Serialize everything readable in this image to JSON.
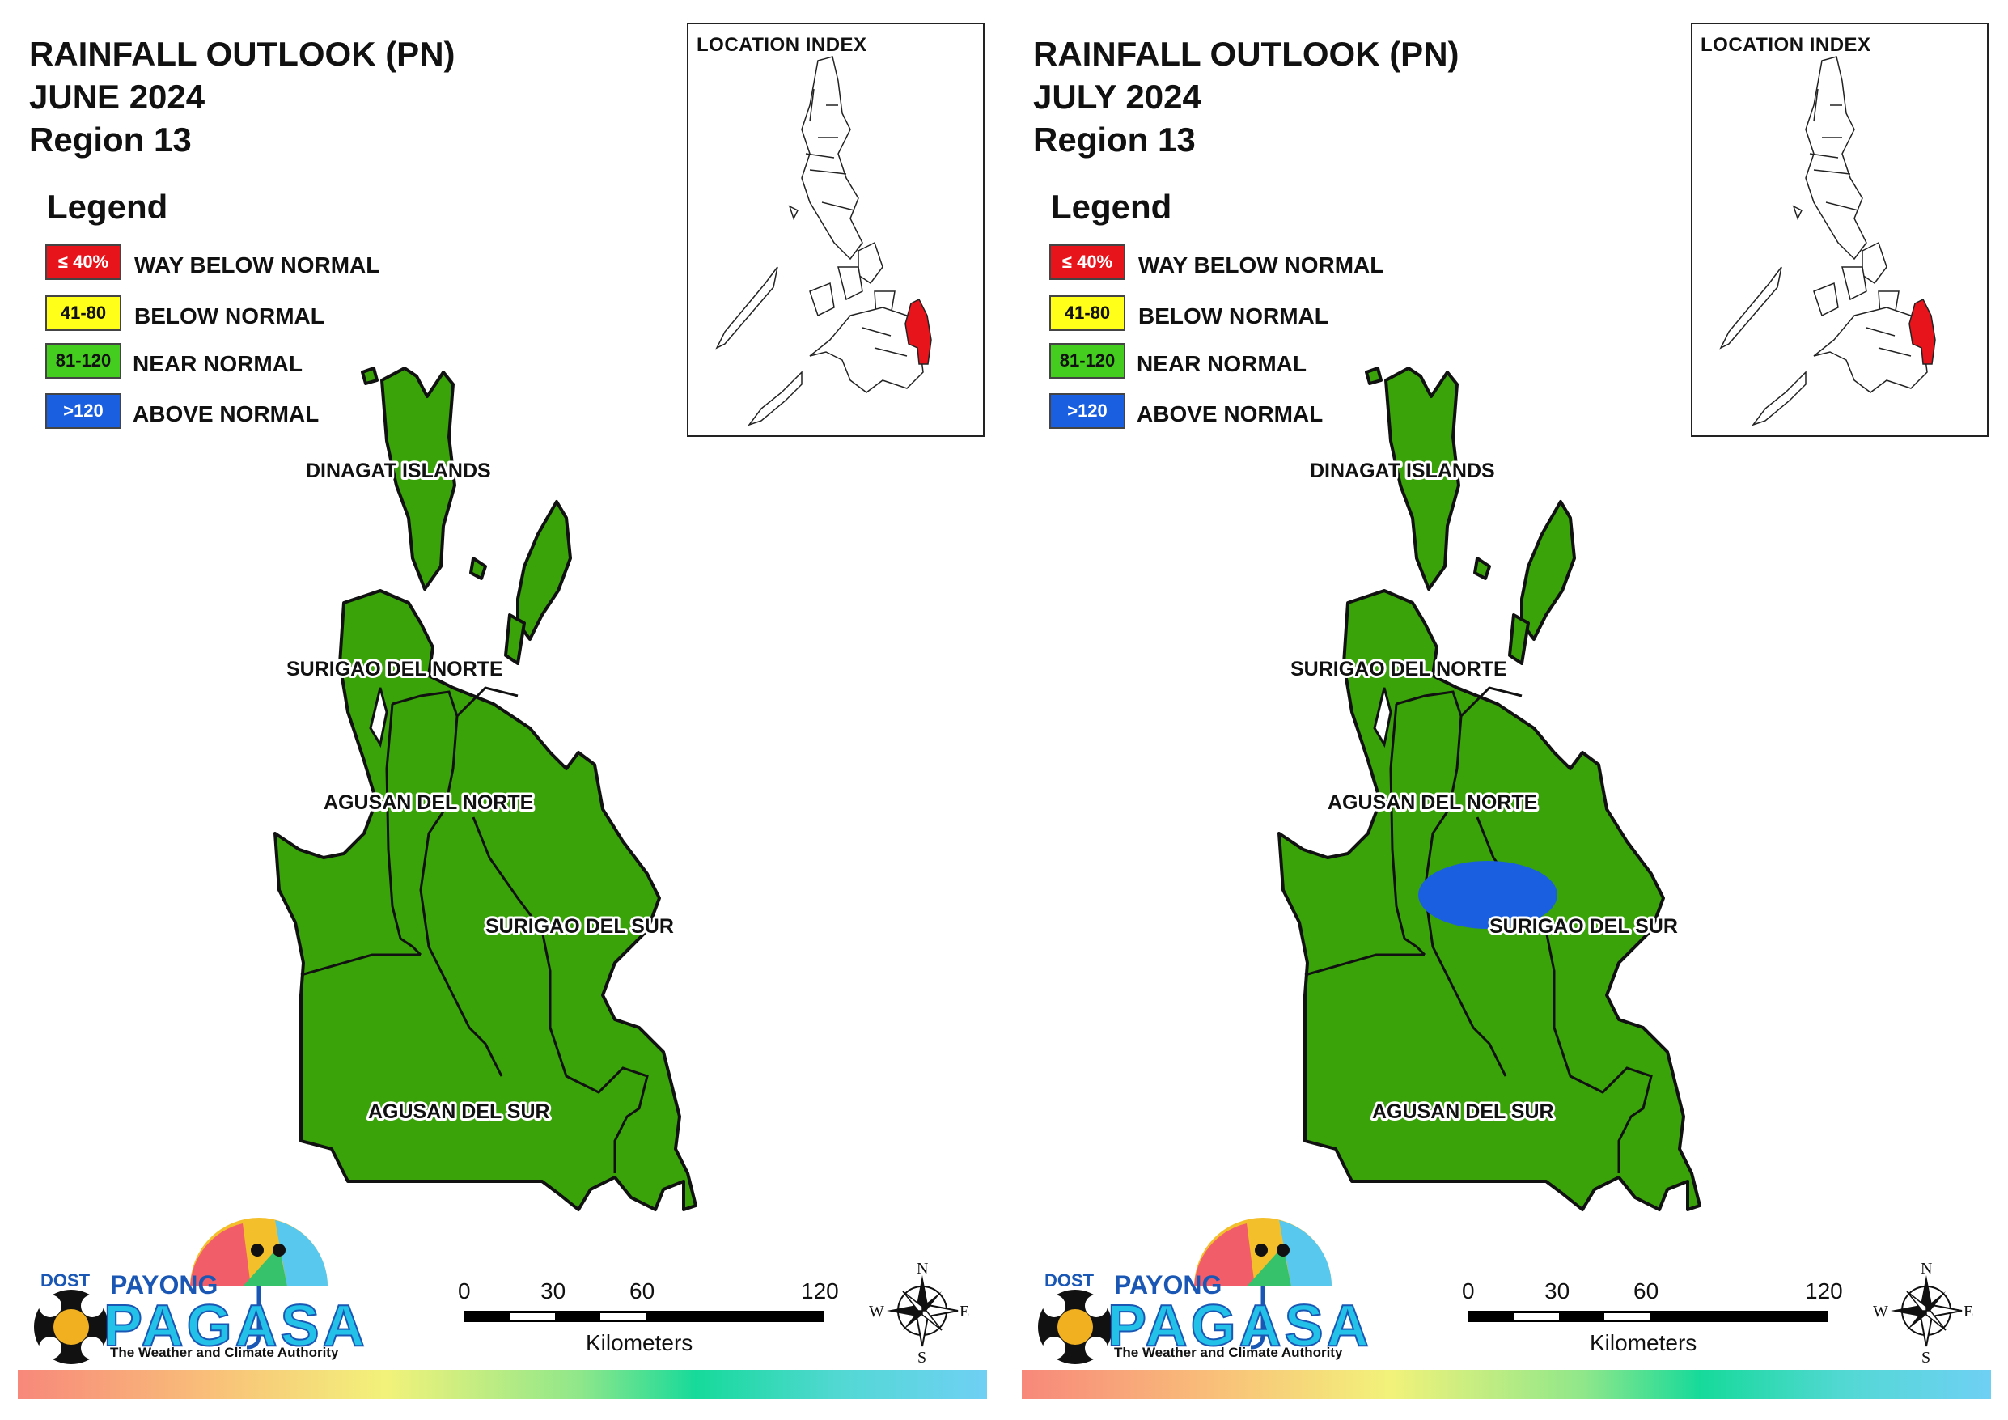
{
  "panels": [
    {
      "title_lines": [
        "RAINFALL OUTLOOK (PN)",
        "JUNE 2024",
        "Region 13"
      ],
      "legend": {
        "title": "Legend",
        "items": [
          {
            "range": "≤ 40%",
            "label": "WAY BELOW NORMAL",
            "color": "#e8141b",
            "text_color": "#ffffff"
          },
          {
            "range": "41-80",
            "label": "BELOW NORMAL",
            "color": "#ffff1a",
            "text_color": "#111111"
          },
          {
            "range": "81-120",
            "label": "NEAR NORMAL",
            "color": "#44cc1f",
            "text_color": "#111111"
          },
          {
            "range": ">120",
            "label": "ABOVE NORMAL",
            "color": "#1a5fe0",
            "text_color": "#ffffff"
          }
        ]
      },
      "location_index": {
        "title": "LOCATION INDEX",
        "highlight_color": "#e8141b"
      },
      "provinces": [
        {
          "name": "DINAGAT ISLANDS",
          "category": "NEAR NORMAL"
        },
        {
          "name": "SURIGAO DEL NORTE",
          "category": "NEAR NORMAL"
        },
        {
          "name": "AGUSAN DEL NORTE",
          "category": "NEAR NORMAL"
        },
        {
          "name": "SURIGAO DEL SUR",
          "category": "NEAR NORMAL"
        },
        {
          "name": "AGUSAN DEL SUR",
          "category": "NEAR NORMAL"
        }
      ],
      "above_normal_area": false,
      "scale_bar": {
        "ticks": [
          "0",
          "30",
          "60",
          "120"
        ],
        "unit": "Kilometers"
      },
      "compass": {
        "n": "N",
        "s": "S",
        "e": "E",
        "w": "W"
      },
      "logo": {
        "dost": "DOST",
        "payong": "PAYONG",
        "pagasa": "PAGASA",
        "tagline": "The Weather and Climate Authority"
      }
    },
    {
      "title_lines": [
        "RAINFALL OUTLOOK (PN)",
        "JULY 2024",
        "Region 13"
      ],
      "legend": {
        "title": "Legend",
        "items": [
          {
            "range": "≤ 40%",
            "label": "WAY BELOW NORMAL",
            "color": "#e8141b",
            "text_color": "#ffffff"
          },
          {
            "range": "41-80",
            "label": "BELOW NORMAL",
            "color": "#ffff1a",
            "text_color": "#111111"
          },
          {
            "range": "81-120",
            "label": "NEAR NORMAL",
            "color": "#44cc1f",
            "text_color": "#111111"
          },
          {
            "range": ">120",
            "label": "ABOVE NORMAL",
            "color": "#1a5fe0",
            "text_color": "#ffffff"
          }
        ]
      },
      "location_index": {
        "title": "LOCATION INDEX",
        "highlight_color": "#e8141b"
      },
      "provinces": [
        {
          "name": "DINAGAT ISLANDS",
          "category": "NEAR NORMAL"
        },
        {
          "name": "SURIGAO DEL NORTE",
          "category": "NEAR NORMAL"
        },
        {
          "name": "AGUSAN DEL NORTE",
          "category": "NEAR NORMAL"
        },
        {
          "name": "SURIGAO DEL SUR",
          "category": "NEAR NORMAL"
        },
        {
          "name": "AGUSAN DEL SUR",
          "category": "NEAR NORMAL"
        }
      ],
      "above_normal_area": true,
      "scale_bar": {
        "ticks": [
          "0",
          "30",
          "60",
          "120"
        ],
        "unit": "Kilometers"
      },
      "compass": {
        "n": "N",
        "s": "S",
        "e": "E",
        "w": "W"
      },
      "logo": {
        "dost": "DOST",
        "payong": "PAYONG",
        "pagasa": "PAGASA",
        "tagline": "The Weather and Climate Authority"
      }
    }
  ],
  "colors": {
    "region_fill": "#3aa30a",
    "boundary": "#111111",
    "above_normal": "#1a5fe0"
  }
}
